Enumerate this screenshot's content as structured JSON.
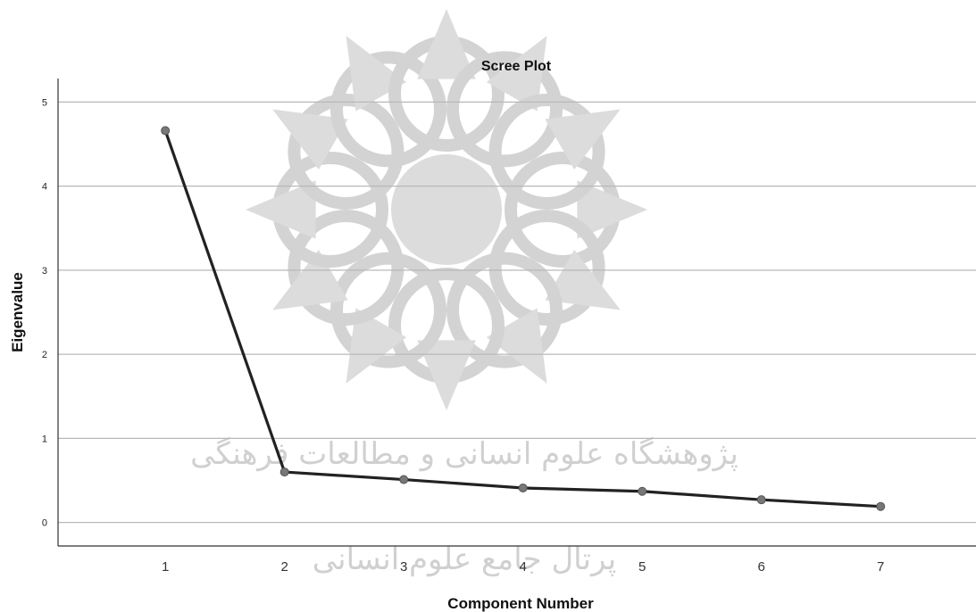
{
  "chart_data": {
    "type": "line",
    "title": "Scree Plot",
    "xlabel": "Component Number",
    "ylabel": "Eigenvalue",
    "x": [
      1,
      2,
      3,
      4,
      5,
      6,
      7
    ],
    "series": [
      {
        "values": [
          4.66,
          0.6,
          0.51,
          0.41,
          0.37,
          0.27,
          0.19
        ]
      }
    ],
    "xticks": [
      "1",
      "2",
      "3",
      "4",
      "5",
      "6",
      "7"
    ],
    "yticks": [
      "0",
      "1",
      "2",
      "3",
      "4",
      "5"
    ],
    "ylim": [
      -0.28,
      5.28
    ],
    "xlim": [
      0.1,
      7.8
    ],
    "grid": true,
    "legend": "none",
    "colors": {
      "line": "#222222",
      "marker": "#777777",
      "grid": "#b8b8b8"
    }
  },
  "watermark": {
    "icon": "rosette-logo",
    "text_line1": "پژوهشگاه علوم انسانی و مطالعات فرهنگی",
    "text_line2": "پرتال جامع علوم انسانی"
  }
}
